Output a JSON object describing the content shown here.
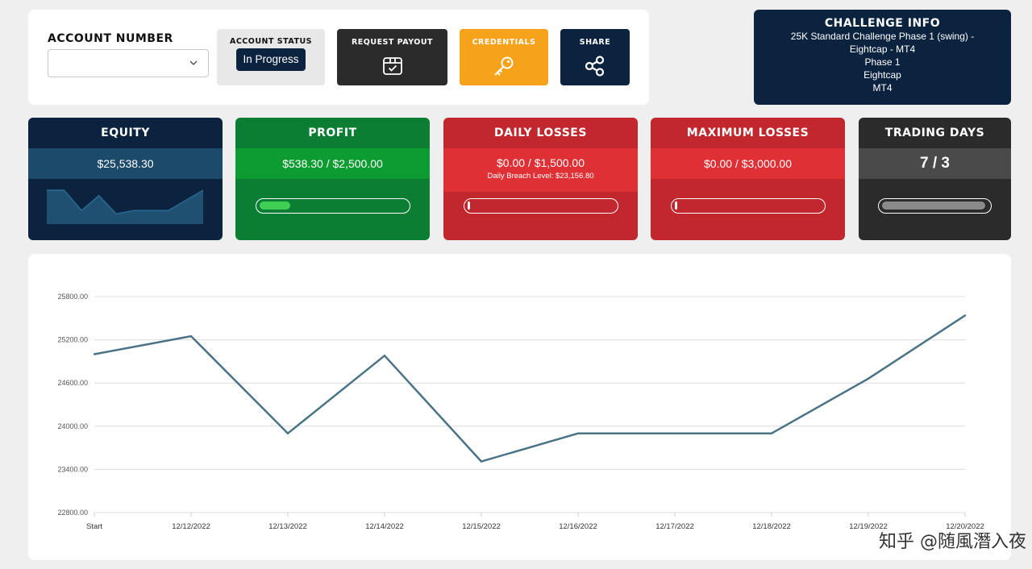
{
  "account": {
    "label": "ACCOUNT NUMBER",
    "value": ""
  },
  "status": {
    "label": "ACCOUNT STATUS",
    "value": "In Progress"
  },
  "buttons": {
    "payout": {
      "label": "REQUEST PAYOUT",
      "icon": "package-check-icon"
    },
    "credentials": {
      "label": "CREDENTIALS",
      "icon": "key-icon"
    },
    "share": {
      "label": "SHARE",
      "icon": "share-icon"
    }
  },
  "challenge": {
    "title": "CHALLENGE INFO",
    "lines": [
      "25K Standard Challenge Phase 1 (swing) -",
      "Eightcap - MT4",
      "Phase 1",
      "Eightcap",
      "MT4"
    ]
  },
  "cards": {
    "equity": {
      "title": "EQUITY",
      "value": "$25,538.30",
      "color": "#0c2340",
      "sparkline": [
        25000,
        25000,
        24700,
        24920,
        24650,
        24700,
        24700,
        24700,
        24850,
        25000
      ]
    },
    "profit": {
      "title": "PROFIT",
      "value": "$538.30 / $2,500.00",
      "color": "#0c7e33",
      "progress": 0.215
    },
    "daily": {
      "title": "DAILY LOSSES",
      "value": "$0.00 / $1,500.00",
      "sub": "Daily Breach Level: $23,156.80",
      "color": "#c1272d",
      "progress": 0.0
    },
    "max": {
      "title": "MAXIMUM LOSSES",
      "value": "$0.00 / $3,000.00",
      "color": "#c1272d",
      "progress": 0.0
    },
    "days": {
      "title": "TRADING DAYS",
      "value": "7 / 3",
      "color": "#2b2b2b",
      "progress": 1.0
    }
  },
  "chart_data": {
    "type": "line",
    "categories": [
      "Start",
      "12/12/2022",
      "12/13/2022",
      "12/14/2022",
      "12/15/2022",
      "12/16/2022",
      "12/17/2022",
      "12/18/2022",
      "12/19/2022",
      "12/20/2022"
    ],
    "series": [
      {
        "values": [
          25000,
          25250,
          23900,
          24980,
          23510,
          23900,
          23900,
          23900,
          24660,
          25538.3
        ]
      }
    ],
    "yticks": [
      "22800.00",
      "23400.00",
      "24000.00",
      "24600.00",
      "25200.00",
      "25800.00"
    ],
    "ylim": [
      22800,
      25800
    ],
    "grid": true,
    "line_color": "#4a7386"
  },
  "watermark": "知乎 @随風潛入夜"
}
